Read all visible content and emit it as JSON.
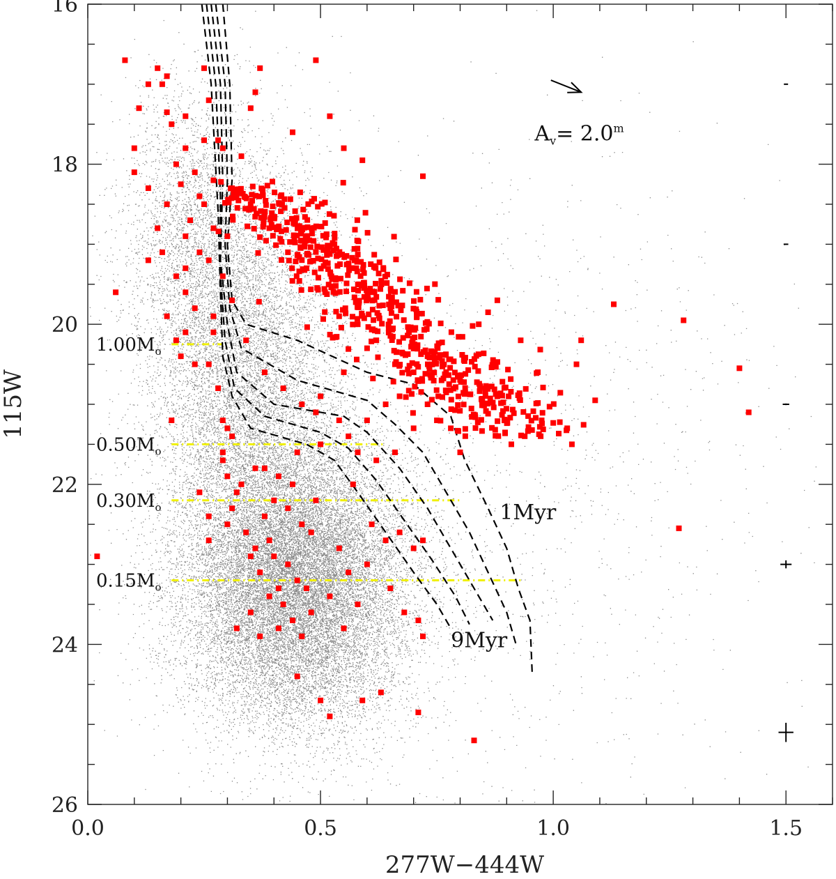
{
  "chart_data": {
    "type": "scatter",
    "xlabel": "277W−444W",
    "ylabel": "115W",
    "xlim": [
      0.0,
      1.6
    ],
    "ylim": [
      26,
      16
    ],
    "y_inverted": true,
    "x_ticks": [
      0.0,
      0.5,
      1.0,
      1.5
    ],
    "x_tick_labels": [
      "0.0",
      "0.5",
      "1.0",
      "1.5"
    ],
    "y_ticks": [
      16,
      18,
      20,
      22,
      24,
      26
    ],
    "y_tick_labels": [
      "16",
      "18",
      "20",
      "22",
      "24",
      "26"
    ],
    "colors": {
      "field": "#6b6b6b",
      "members": "#ff0000",
      "mass_lines": "#f0f000",
      "isochrones": "#000000"
    },
    "field_distribution": {
      "components": [
        {
          "x_mean": 0.45,
          "x_sd": 0.12,
          "y_mean": 23.2,
          "y_sd": 0.9,
          "weight": 0.62
        },
        {
          "x_mean": 0.34,
          "x_sd": 0.1,
          "y_mean": 20.6,
          "y_sd": 1.3,
          "weight": 0.26
        },
        {
          "x_mean": 0.22,
          "x_sd": 0.07,
          "y_mean": 18.8,
          "y_sd": 0.9,
          "weight": 0.07
        },
        {
          "x_mean": 0.8,
          "x_sd": 0.35,
          "y_mean": 22.0,
          "y_sd": 2.0,
          "weight": 0.05
        }
      ]
    },
    "member_points": [
      [
        0.08,
        16.7
      ],
      [
        0.15,
        16.8
      ],
      [
        0.17,
        16.9
      ],
      [
        0.13,
        17.0
      ],
      [
        0.16,
        17.0
      ],
      [
        0.25,
        16.8
      ],
      [
        0.37,
        16.8
      ],
      [
        0.49,
        16.7
      ],
      [
        0.36,
        17.1
      ],
      [
        0.35,
        17.3
      ],
      [
        0.11,
        17.3
      ],
      [
        0.17,
        17.35
      ],
      [
        0.21,
        17.4
      ],
      [
        0.18,
        17.5
      ],
      [
        0.26,
        17.2
      ],
      [
        0.52,
        17.4
      ],
      [
        0.25,
        17.7
      ],
      [
        0.1,
        17.8
      ],
      [
        0.21,
        17.8
      ],
      [
        0.28,
        17.7
      ],
      [
        0.44,
        17.6
      ],
      [
        0.55,
        17.8
      ],
      [
        0.59,
        17.95
      ],
      [
        0.72,
        18.15
      ],
      [
        0.1,
        18.1
      ],
      [
        0.19,
        18.0
      ],
      [
        0.23,
        18.1
      ],
      [
        0.13,
        18.3
      ],
      [
        0.2,
        18.25
      ],
      [
        0.24,
        18.4
      ],
      [
        0.17,
        18.5
      ],
      [
        0.27,
        18.2
      ],
      [
        0.25,
        18.5
      ],
      [
        0.22,
        18.7
      ],
      [
        0.15,
        18.8
      ],
      [
        0.21,
        18.9
      ],
      [
        0.27,
        18.8
      ],
      [
        0.24,
        19.1
      ],
      [
        0.16,
        19.1
      ],
      [
        0.13,
        19.2
      ],
      [
        0.21,
        19.3
      ],
      [
        0.26,
        19.2
      ],
      [
        0.21,
        19.6
      ],
      [
        0.19,
        19.4
      ],
      [
        0.06,
        19.6
      ],
      [
        0.23,
        19.8
      ],
      [
        0.17,
        19.9
      ],
      [
        0.27,
        19.9
      ],
      [
        0.19,
        20.2
      ],
      [
        0.21,
        20.1
      ],
      [
        0.27,
        20.1
      ],
      [
        0.2,
        20.4
      ],
      [
        0.23,
        20.5
      ],
      [
        0.26,
        20.5
      ],
      [
        0.28,
        20.8
      ],
      [
        0.18,
        21.2
      ],
      [
        0.29,
        21.2
      ],
      [
        0.3,
        21.3
      ],
      [
        0.29,
        21.6
      ],
      [
        0.3,
        21.9
      ],
      [
        0.32,
        22.1
      ],
      [
        0.24,
        22.1
      ],
      [
        0.26,
        22.7
      ],
      [
        0.26,
        22.4
      ],
      [
        0.3,
        22.5
      ],
      [
        0.31,
        22.3
      ],
      [
        0.32,
        23.8
      ],
      [
        0.35,
        23.6
      ],
      [
        0.37,
        23.9
      ],
      [
        0.02,
        22.9
      ],
      [
        0.34,
        22.6
      ],
      [
        0.36,
        22.8
      ],
      [
        0.39,
        22.7
      ],
      [
        0.4,
        22.9
      ],
      [
        0.37,
        23.1
      ],
      [
        0.41,
        23.3
      ],
      [
        0.43,
        23.0
      ],
      [
        0.45,
        23.2
      ],
      [
        0.42,
        23.5
      ],
      [
        0.44,
        23.7
      ],
      [
        0.46,
        23.9
      ],
      [
        0.48,
        23.6
      ],
      [
        0.52,
        23.4
      ],
      [
        0.55,
        23.8
      ],
      [
        0.4,
        22.2
      ],
      [
        0.43,
        22.3
      ],
      [
        0.46,
        22.5
      ],
      [
        0.48,
        22.6
      ],
      [
        0.38,
        21.8
      ],
      [
        0.41,
        21.9
      ],
      [
        0.44,
        22.0
      ],
      [
        0.49,
        22.2
      ],
      [
        0.57,
        22.0
      ],
      [
        0.54,
        22.8
      ],
      [
        0.58,
        23.5
      ],
      [
        0.61,
        22.5
      ],
      [
        0.64,
        22.7
      ],
      [
        0.67,
        22.6
      ],
      [
        0.7,
        22.8
      ],
      [
        0.72,
        22.7
      ],
      [
        0.68,
        23.6
      ],
      [
        0.71,
        23.7
      ],
      [
        0.72,
        23.9
      ],
      [
        0.59,
        24.7
      ],
      [
        0.63,
        24.6
      ],
      [
        0.5,
        24.7
      ],
      [
        0.45,
        24.4
      ],
      [
        0.52,
        24.9
      ],
      [
        0.71,
        24.85
      ],
      [
        0.83,
        25.2
      ],
      [
        0.56,
        23.1
      ],
      [
        0.6,
        23.0
      ],
      [
        0.65,
        23.3
      ],
      [
        0.39,
        23.4
      ],
      [
        0.41,
        23.8
      ],
      [
        0.47,
        23.3
      ],
      [
        0.35,
        22.9
      ],
      [
        0.38,
        22.4
      ],
      [
        0.33,
        22.0
      ],
      [
        0.29,
        21.7
      ],
      [
        0.31,
        21.4
      ],
      [
        0.36,
        21.8
      ],
      [
        0.5,
        21.5
      ],
      [
        0.45,
        21.6
      ],
      [
        0.56,
        21.4
      ],
      [
        0.6,
        21.2
      ],
      [
        0.64,
        21.0
      ],
      [
        0.67,
        20.9
      ],
      [
        0.73,
        21.0
      ],
      [
        0.78,
        21.3
      ],
      [
        0.91,
        21.5
      ],
      [
        0.75,
        21.2
      ],
      [
        0.8,
        21.6
      ],
      [
        0.7,
        21.3
      ],
      [
        0.66,
        21.6
      ],
      [
        0.62,
        21.7
      ],
      [
        0.58,
        21.6
      ],
      [
        0.54,
        21.2
      ],
      [
        0.49,
        21.1
      ],
      [
        0.84,
        20.0
      ],
      [
        0.86,
        19.85
      ],
      [
        0.88,
        19.7
      ],
      [
        0.93,
        20.2
      ],
      [
        1.06,
        20.2
      ],
      [
        1.13,
        19.75
      ],
      [
        1.28,
        19.95
      ],
      [
        1.05,
        20.5
      ],
      [
        1.09,
        20.95
      ],
      [
        1.03,
        21.3
      ],
      [
        1.04,
        21.5
      ],
      [
        1.4,
        20.55
      ],
      [
        1.42,
        21.1
      ],
      [
        1.27,
        22.55
      ],
      [
        0.53,
        19.0
      ],
      [
        0.57,
        19.3
      ],
      [
        0.61,
        19.6
      ],
      [
        0.65,
        19.8
      ],
      [
        0.69,
        20.1
      ],
      [
        0.73,
        20.4
      ],
      [
        0.76,
        20.7
      ],
      [
        0.6,
        20.3
      ],
      [
        0.55,
        20.6
      ],
      [
        0.5,
        20.9
      ],
      [
        0.46,
        21.0
      ],
      [
        0.42,
        20.8
      ],
      [
        0.38,
        20.6
      ],
      [
        0.34,
        20.2
      ],
      [
        0.31,
        19.7
      ],
      [
        0.29,
        19.4
      ],
      [
        0.3,
        18.9
      ],
      [
        0.31,
        18.3
      ],
      [
        0.33,
        17.9
      ],
      [
        0.29,
        17.8
      ],
      [
        0.35,
        18.5
      ],
      [
        0.39,
        18.8
      ],
      [
        0.43,
        19.1
      ],
      [
        0.47,
        19.3
      ],
      [
        0.51,
        19.6
      ],
      [
        0.54,
        19.9
      ],
      [
        0.58,
        20.0
      ],
      [
        0.62,
        20.2
      ],
      [
        0.66,
        20.5
      ],
      [
        0.7,
        20.6
      ]
    ],
    "member_core_distribution": {
      "count": 620,
      "relation": "x = 0.32 + 0.19*(y - 18.2) + scatter",
      "y_range": [
        18.2,
        21.4
      ],
      "x_scatter": 0.09
    },
    "isochrones": [
      {
        "label": "1Myr",
        "points": [
          [
            0.29,
            16.0
          ],
          [
            0.305,
            17.0
          ],
          [
            0.31,
            18.2
          ],
          [
            0.3,
            19.0
          ],
          [
            0.31,
            19.7
          ],
          [
            0.34,
            20.0
          ],
          [
            0.45,
            20.2
          ],
          [
            0.6,
            20.6
          ],
          [
            0.7,
            20.75
          ],
          [
            0.78,
            21.15
          ],
          [
            0.81,
            21.7
          ],
          [
            0.86,
            22.3
          ],
          [
            0.9,
            22.8
          ],
          [
            0.925,
            23.3
          ],
          [
            0.95,
            23.7
          ],
          [
            0.955,
            24.4
          ]
        ]
      },
      {
        "points": [
          [
            0.275,
            16.0
          ],
          [
            0.295,
            17.0
          ],
          [
            0.3,
            18.2
          ],
          [
            0.295,
            19.0
          ],
          [
            0.305,
            19.8
          ],
          [
            0.33,
            20.3
          ],
          [
            0.45,
            20.7
          ],
          [
            0.6,
            20.95
          ],
          [
            0.66,
            21.25
          ],
          [
            0.72,
            21.6
          ],
          [
            0.77,
            22.1
          ],
          [
            0.82,
            22.6
          ],
          [
            0.86,
            23.1
          ],
          [
            0.9,
            23.6
          ],
          [
            0.92,
            24.0
          ]
        ]
      },
      {
        "points": [
          [
            0.265,
            16.0
          ],
          [
            0.285,
            17.0
          ],
          [
            0.29,
            18.2
          ],
          [
            0.285,
            19.2
          ],
          [
            0.3,
            20.0
          ],
          [
            0.32,
            20.6
          ],
          [
            0.4,
            21.0
          ],
          [
            0.55,
            21.15
          ],
          [
            0.6,
            21.35
          ],
          [
            0.67,
            21.8
          ],
          [
            0.73,
            22.3
          ],
          [
            0.78,
            22.8
          ],
          [
            0.83,
            23.3
          ],
          [
            0.87,
            23.7
          ]
        ]
      },
      {
        "points": [
          [
            0.255,
            16.0
          ],
          [
            0.275,
            17.0
          ],
          [
            0.285,
            18.4
          ],
          [
            0.285,
            19.4
          ],
          [
            0.295,
            20.2
          ],
          [
            0.315,
            20.8
          ],
          [
            0.38,
            21.15
          ],
          [
            0.5,
            21.35
          ],
          [
            0.56,
            21.55
          ],
          [
            0.62,
            21.95
          ],
          [
            0.68,
            22.45
          ],
          [
            0.74,
            22.95
          ],
          [
            0.79,
            23.4
          ],
          [
            0.82,
            23.75
          ]
        ]
      },
      {
        "label": "9Myr",
        "points": [
          [
            0.245,
            16.0
          ],
          [
            0.265,
            17.0
          ],
          [
            0.28,
            18.6
          ],
          [
            0.285,
            19.6
          ],
          [
            0.29,
            20.4
          ],
          [
            0.31,
            20.9
          ],
          [
            0.35,
            21.3
          ],
          [
            0.47,
            21.5
          ],
          [
            0.53,
            21.7
          ],
          [
            0.58,
            22.1
          ],
          [
            0.64,
            22.6
          ],
          [
            0.7,
            23.1
          ],
          [
            0.75,
            23.5
          ],
          [
            0.78,
            23.8
          ]
        ]
      }
    ],
    "mass_lines": [
      {
        "label": "1.00M",
        "y": 20.25,
        "x_start": 0.18,
        "x_end": 0.29
      },
      {
        "label": "0.50M",
        "y": 21.5,
        "x_start": 0.18,
        "x_end": 0.64
      },
      {
        "label": "0.30M",
        "y": 22.2,
        "x_start": 0.18,
        "x_end": 0.8
      },
      {
        "label": "0.15M",
        "y": 23.2,
        "x_start": 0.18,
        "x_end": 0.93
      }
    ],
    "mass_label_subscript": "o",
    "isochrone_labels": [
      {
        "text": "1Myr",
        "x": 0.885,
        "y": 22.35
      },
      {
        "text": "9Myr",
        "x": 0.78,
        "y": 23.95
      }
    ],
    "reddening_vector": {
      "x0": 0.995,
      "y0": 16.95,
      "x1": 1.06,
      "y1": 17.1,
      "text": "A",
      "subscript": "v",
      "value_text": "= 2.0",
      "superscript": "m",
      "text_x": 0.96,
      "text_y": 17.6
    },
    "error_bars": [
      {
        "x": 1.5,
        "y": 17.0,
        "x_err": 0.004,
        "y_err": 0.0
      },
      {
        "x": 1.5,
        "y": 19.0,
        "x_err": 0.005,
        "y_err": 0.0
      },
      {
        "x": 1.5,
        "y": 21.0,
        "x_err": 0.007,
        "y_err": 0.01
      },
      {
        "x": 1.5,
        "y": 23.0,
        "x_err": 0.012,
        "y_err": 0.05
      },
      {
        "x": 1.5,
        "y": 25.1,
        "x_err": 0.016,
        "y_err": 0.12
      }
    ]
  }
}
